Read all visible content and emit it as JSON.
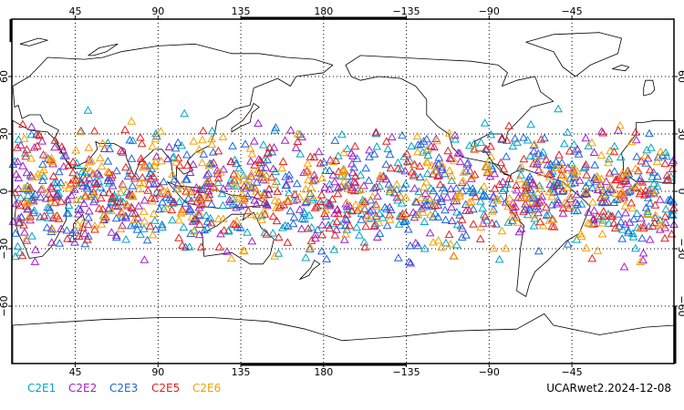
{
  "map": {
    "projection": "cylindrical-equidistant",
    "central_longitude_deg": 180,
    "lon_range_deg": [
      10.5,
      370.5
    ],
    "lat_range_deg": [
      -90,
      90
    ],
    "graticule": {
      "lon_step": 45,
      "lat_step": 30,
      "style": "dotted"
    },
    "land_outline_color": "#000000",
    "ocean_color": "#ffffff"
  },
  "axes": {
    "top_lon_labels": [
      "45",
      "90",
      "135",
      "180",
      "−135",
      "−90",
      "−45"
    ],
    "bottom_lon_labels": [
      "45",
      "90",
      "135",
      "180",
      "−135",
      "−90",
      "−45"
    ],
    "left_lat_labels": [
      "60",
      "30",
      "0",
      "−30",
      "−60"
    ],
    "right_lat_labels": [
      "60",
      "30",
      "0",
      "−30",
      "−60"
    ]
  },
  "legend": [
    {
      "label": "C2E1",
      "color": "#00a6c8"
    },
    {
      "label": "C2E2",
      "color": "#a020c8"
    },
    {
      "label": "C2E3",
      "color": "#1e64dc"
    },
    {
      "label": "C2E5",
      "color": "#e61e1e"
    },
    {
      "label": "C2E6",
      "color": "#f5a000"
    }
  ],
  "stamp": "UCARwet2.2024-12-08",
  "observations": {
    "marker": "open-triangle",
    "coverage_lat_deg": [
      -45,
      45
    ],
    "approx_count_per_satellite": 300
  }
}
